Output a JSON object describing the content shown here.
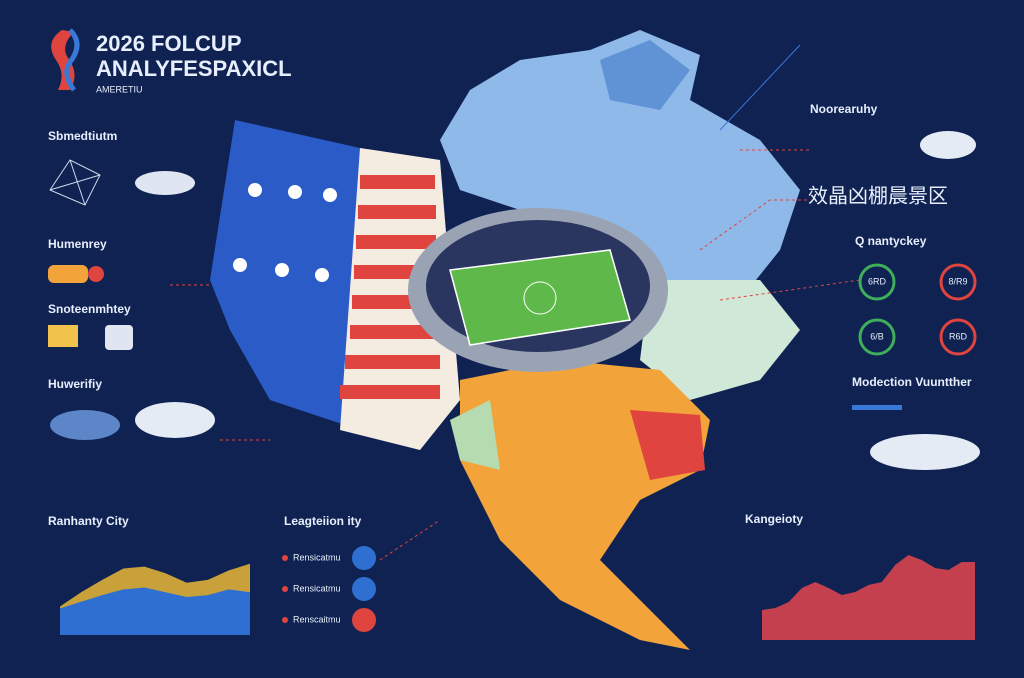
{
  "header": {
    "title_line1": "2026 FOLCUP",
    "title_line2": "ANALYFESPAXICL",
    "subtitle": "AMERETIU"
  },
  "left_panel": {
    "items": [
      {
        "title": "Sbmedtiutm"
      },
      {
        "title": "Humenrey"
      },
      {
        "title": "Snoteenmhtey"
      },
      {
        "title": "Huwerifiy"
      }
    ]
  },
  "top_right": {
    "title": "Noorearuhy",
    "heading": "效晶凶棚晨景区"
  },
  "stats": {
    "title": "Q nantyckey",
    "circles": [
      {
        "label": "6RD",
        "color": "#3fae5a"
      },
      {
        "label": "8/R9",
        "color": "#e0443e"
      },
      {
        "label": "6/B",
        "color": "#3fae5a"
      },
      {
        "label": "R6D",
        "color": "#e0443e"
      }
    ]
  },
  "weather": {
    "title": "Modection Vuuntther"
  },
  "left_chart": {
    "title": "Ranhanty City",
    "ylim": [
      0,
      100
    ],
    "series": [
      {
        "color": "#c9a13a",
        "values": [
          30,
          45,
          58,
          70,
          72,
          65,
          55,
          58,
          68,
          75
        ]
      },
      {
        "color": "#2f6fd1",
        "values": [
          28,
          35,
          42,
          48,
          50,
          45,
          40,
          42,
          48,
          45
        ]
      }
    ]
  },
  "legend_list": {
    "title": "Leagteiion ity",
    "items": [
      {
        "text": "Rensicatmu",
        "color": "#2f6fd1"
      },
      {
        "text": "Rensicatmu",
        "color": "#2f6fd1"
      },
      {
        "text": "Renscaitmu",
        "color": "#e0443e"
      }
    ]
  },
  "right_chart": {
    "title": "Kangeioty",
    "ylim": [
      0,
      100
    ],
    "color": "#c4404f",
    "values": [
      30,
      32,
      38,
      52,
      58,
      52,
      45,
      48,
      55,
      58,
      75,
      85,
      80,
      72,
      70,
      78,
      78
    ]
  }
}
